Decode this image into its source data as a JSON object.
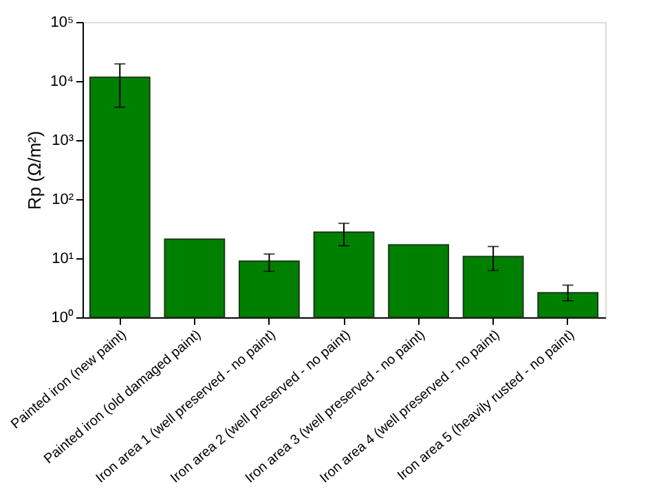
{
  "chart_data": {
    "type": "bar",
    "ylabel": "Rp (Ω/m²)",
    "categories": [
      "Painted iron (new paint)",
      "Painted iron (old damaged paint)",
      "Iron area 1 (well preserved - no paint)",
      "Iron area 2 (well preserved - no paint)",
      "Iron area 3 (well preserved - no paint)",
      "Iron area 4 (well preserved - no paint)",
      "Iron area 5 (heavily rusted - no paint)"
    ],
    "values": [
      11600,
      21,
      8.9,
      27.6,
      16.9,
      10.7,
      2.6
    ],
    "errors": [
      [
        3600,
        19500
      ],
      null,
      [
        6.0,
        11.8
      ],
      [
        16.3,
        39
      ],
      null,
      [
        6.2,
        15.8
      ],
      [
        1.9,
        3.5
      ]
    ],
    "color": "#008000",
    "log": "y",
    "ylim": [
      1,
      100000
    ],
    "yticks": [
      {
        "value": 1,
        "label": "10⁰"
      },
      {
        "value": 10,
        "label": "10¹"
      },
      {
        "value": 100,
        "label": "10²"
      },
      {
        "value": 1000,
        "label": "10³"
      },
      {
        "value": 10000,
        "label": "10⁴"
      },
      {
        "value": 100000,
        "label": "10⁵"
      }
    ],
    "grid": false
  }
}
